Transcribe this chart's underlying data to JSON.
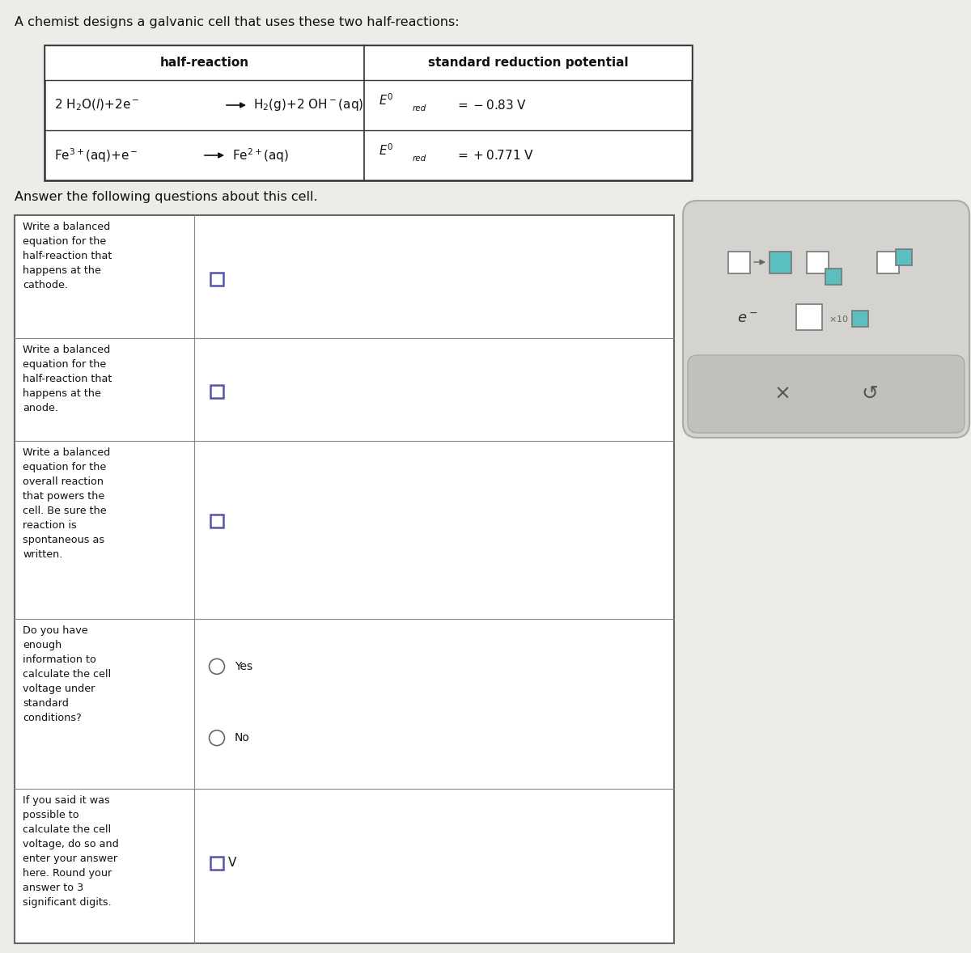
{
  "title_text": "A chemist designs a galvanic cell that uses these two half-reactions:",
  "bg_color": "#eeece9",
  "table_bg": "#ffffff",
  "border_color": "#444444",
  "teal_color": "#5bbfbf",
  "input_box_color": "#5555aa",
  "panel_bg": "#d5d3d0",
  "panel_bottom_bg": "#c2c0bd",
  "q_texts": [
    "Write a balanced\nequation for the\nhalf-reaction that\nhappens at the\ncathode.",
    "Write a balanced\nequation for the\nhalf-reaction that\nhappens at the\nanode.",
    "Write a balanced\nequation for the\noverall reaction\nthat powers the\ncell. Be sure the\nreaction is\nspontaneous as\nwritten.",
    "Do you have\nenough\ninformation to\ncalculate the cell\nvoltage under\nstandard\nconditions?",
    "If you said it was\npossible to\ncalculate the cell\nvoltage, do so and\nenter your answer\nhere. Round your\nanswer to 3\nsignificant digits."
  ]
}
